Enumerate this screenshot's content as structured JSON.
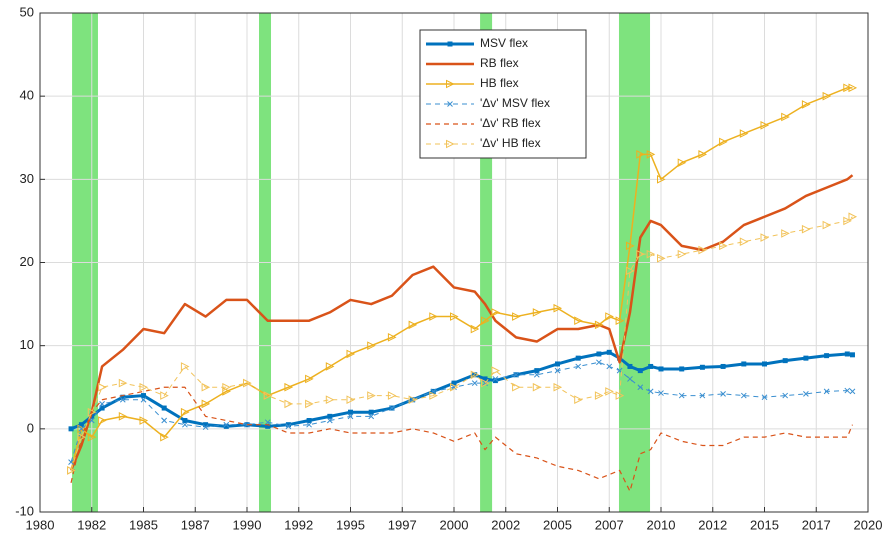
{
  "chart_data": {
    "type": "line",
    "x": [
      1981.5,
      1982,
      1982.5,
      1983,
      1984,
      1985,
      1986,
      1987,
      1988,
      1989,
      1990,
      1991,
      1992,
      1993,
      1994,
      1995,
      1996,
      1997,
      1998,
      1999,
      2000,
      2001,
      2001.5,
      2002,
      2003,
      2004,
      2005,
      2006,
      2007,
      2007.5,
      2008,
      2008.5,
      2009,
      2009.5,
      2010,
      2011,
      2012,
      2013,
      2014,
      2015,
      2016,
      2017,
      2018,
      2019,
      2019.25
    ],
    "series": [
      {
        "name": "MSV flex",
        "color": "#0072bd",
        "dash": "solid",
        "width": 3,
        "marker": "square",
        "values": [
          0,
          0.5,
          1.5,
          2.5,
          3.8,
          4.0,
          2.5,
          1.0,
          0.5,
          0.3,
          0.5,
          0.3,
          0.5,
          1.0,
          1.5,
          2.0,
          2.0,
          2.5,
          3.5,
          4.5,
          5.5,
          6.5,
          6.0,
          5.8,
          6.5,
          7.0,
          7.8,
          8.5,
          9.0,
          9.2,
          8.5,
          7.5,
          7.0,
          7.5,
          7.2,
          7.2,
          7.4,
          7.5,
          7.8,
          7.8,
          8.2,
          8.5,
          8.8,
          9.0,
          8.9
        ]
      },
      {
        "name": "RB flex",
        "color": "#d95319",
        "dash": "solid",
        "width": 2.5,
        "marker": "none",
        "values": [
          -5,
          -2,
          2,
          7.5,
          9.5,
          12,
          11.5,
          15,
          13.5,
          15.5,
          15.5,
          13,
          13,
          13,
          14,
          15.5,
          15,
          16,
          18.5,
          19.5,
          17,
          16.5,
          15,
          13,
          11,
          10.5,
          12,
          12,
          12.5,
          12,
          8,
          14,
          23,
          25,
          24.5,
          22,
          21.5,
          22.5,
          24.5,
          25.5,
          26.5,
          28,
          29,
          30,
          30.5
        ]
      },
      {
        "name": "HB flex",
        "color": "#edb120",
        "dash": "solid",
        "width": 1.5,
        "marker": "triangle",
        "values": [
          -5,
          0,
          -1,
          1,
          1.5,
          1,
          -1,
          2,
          3,
          4.5,
          5.5,
          4,
          5,
          6,
          7.5,
          9,
          10,
          11,
          12.5,
          13.5,
          13.5,
          12,
          13,
          14,
          13.5,
          14,
          14.5,
          13,
          12.5,
          13.5,
          13,
          22,
          33,
          33,
          30,
          32,
          33,
          34.5,
          35.5,
          36.5,
          37.5,
          39,
          40,
          41,
          41
        ]
      },
      {
        "name": "'Δv' MSV flex",
        "color": "#3a8fd0",
        "dash": "dashed",
        "width": 1,
        "marker": "x",
        "values": [
          -4,
          0,
          1,
          3,
          3.5,
          3.5,
          1,
          0.5,
          0.2,
          0.5,
          0.5,
          0.8,
          0.3,
          0.5,
          1.0,
          1.5,
          1.5,
          2.5,
          3.5,
          4.5,
          5,
          5.5,
          5.5,
          6,
          6.5,
          6.5,
          7,
          7.5,
          8,
          7.5,
          7,
          6,
          5,
          4.5,
          4.3,
          4.0,
          4.0,
          4.2,
          4.0,
          3.8,
          4.0,
          4.2,
          4.5,
          4.6,
          4.5
        ]
      },
      {
        "name": "'Δv' RB flex",
        "color": "#d95319",
        "dash": "dashed",
        "width": 1.2,
        "marker": "none",
        "values": [
          -6.5,
          -1,
          2,
          3.5,
          4,
          4.5,
          5,
          5,
          1.5,
          1,
          0.5,
          0.5,
          -0.5,
          -0.5,
          0,
          -0.5,
          -0.5,
          -0.5,
          0,
          -0.5,
          -1.5,
          -0.5,
          -2.5,
          -1,
          -3,
          -3.5,
          -4.5,
          -5,
          -6,
          -5.5,
          -5,
          -7.5,
          -3,
          -2.5,
          -0.5,
          -1.5,
          -2,
          -2,
          -1,
          -1,
          -0.5,
          -1,
          -1,
          -1,
          0.5
        ]
      },
      {
        "name": "'Δv' HB flex",
        "color": "#f2c35a",
        "dash": "dashed",
        "width": 1,
        "marker": "triangle-open",
        "values": [
          -5,
          -1,
          2,
          5,
          5.5,
          5,
          4,
          7.5,
          5,
          5,
          5.5,
          4,
          3,
          3,
          3.5,
          3.5,
          4,
          4,
          3.5,
          4,
          5,
          6.5,
          5.5,
          7,
          5,
          5,
          5,
          3.5,
          4,
          4.5,
          4,
          19,
          21,
          21,
          20.5,
          21,
          21.5,
          22,
          22.5,
          23,
          23.5,
          24,
          24.5,
          25,
          25.5
        ]
      }
    ],
    "shaded_regions": [
      [
        1981.55,
        1982.8
      ],
      [
        1990.58,
        1991.16
      ],
      [
        2001.26,
        2001.84
      ],
      [
        2007.97,
        2009.47
      ]
    ],
    "shade_color": "#7ee37e",
    "xlim": [
      1980,
      2020
    ],
    "xticks": [
      1980,
      {
        "value": 1982.5,
        "label": "1982"
      },
      1985,
      {
        "value": 1987.5,
        "label": "1987"
      },
      1990,
      {
        "value": 1992.5,
        "label": "1992"
      },
      1995,
      {
        "value": 1997.5,
        "label": "1997"
      },
      2000,
      {
        "value": 2002.5,
        "label": "2002"
      },
      2005,
      {
        "value": 2007.5,
        "label": "2007"
      },
      2010,
      {
        "value": 2012.5,
        "label": "2012"
      },
      2015,
      {
        "value": 2017.5,
        "label": "2017"
      },
      2020
    ],
    "ylim": [
      -10,
      50
    ],
    "yticks": [
      -10,
      0,
      10,
      20,
      30,
      40,
      50
    ],
    "grid": true,
    "legend": "top-center"
  }
}
